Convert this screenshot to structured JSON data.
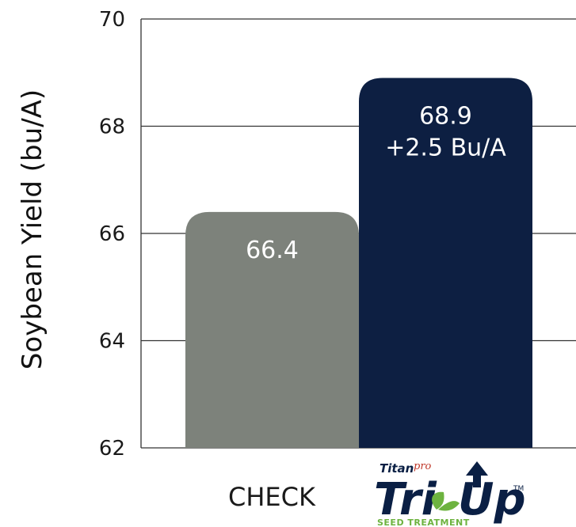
{
  "chart_data": {
    "type": "bar",
    "categories": [
      "CHECK",
      "Titan pro Tri Up"
    ],
    "values": [
      66.4,
      68.9
    ],
    "bar_labels": [
      [
        "66.4"
      ],
      [
        "68.9",
        "+2.5 Bu/A"
      ]
    ],
    "bar_colors": [
      "#7d827b",
      "#0d1f42"
    ],
    "ylabel": "Soybean Yield (bu/A)",
    "ylim": [
      62,
      70
    ],
    "yticks": [
      70,
      68,
      66,
      64,
      62
    ],
    "grid": true
  },
  "logo": {
    "brand_top": "Titan",
    "brand_pro": "pro",
    "brand_main_1": "Tri",
    "brand_main_2": "Up",
    "trademark": "TM",
    "tagline": "SEED TREATMENT"
  }
}
